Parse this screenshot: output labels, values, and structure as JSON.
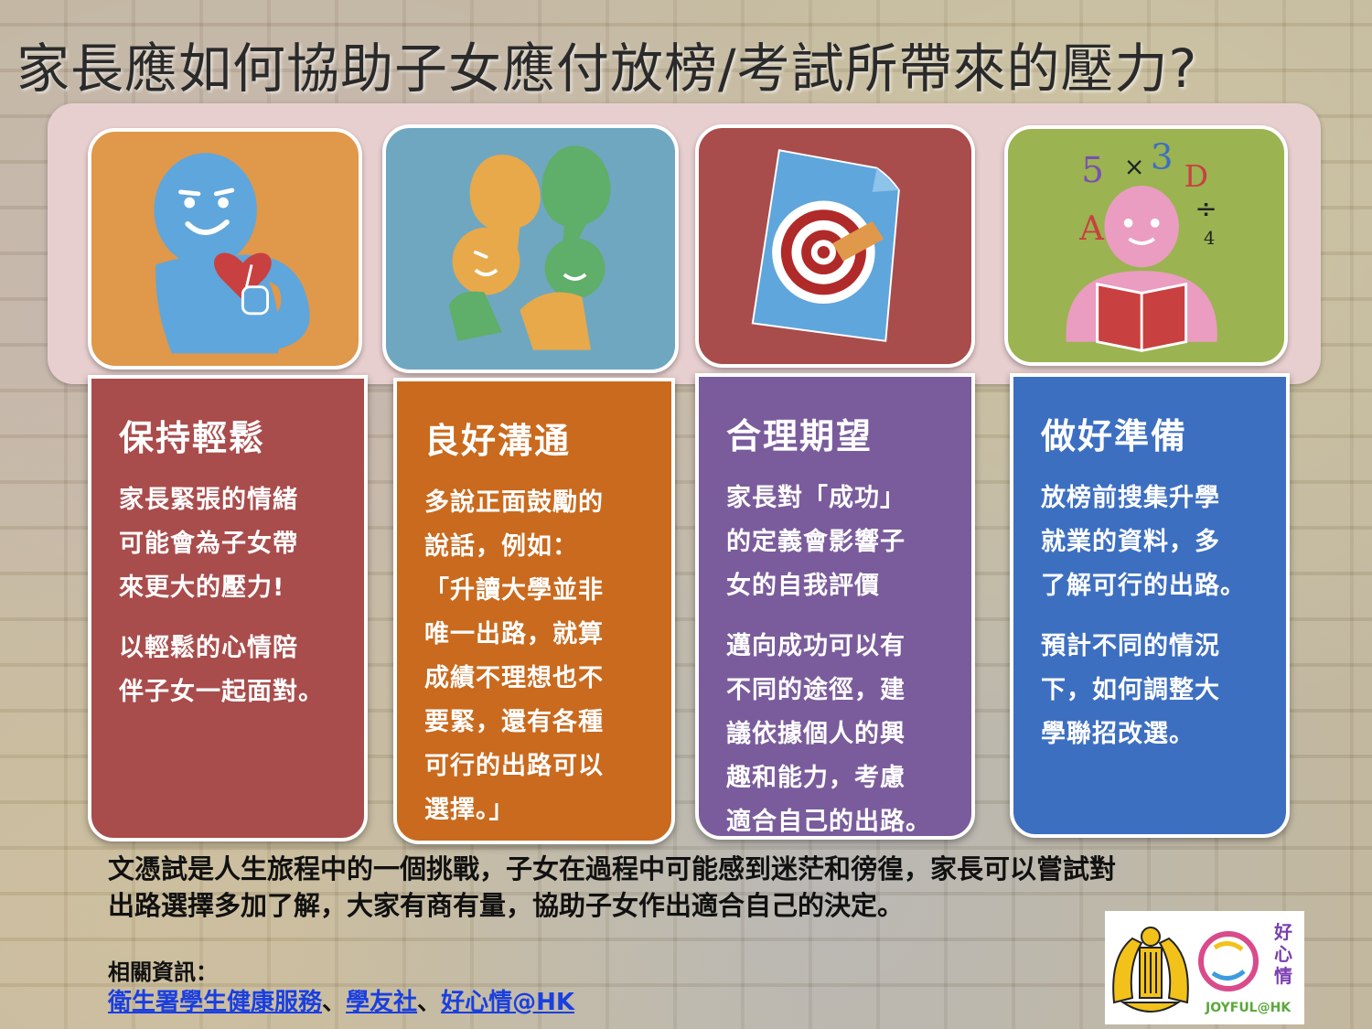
{
  "title": "家長應如何協助子女應付放榜/考試所帶來的壓力?",
  "cards": [
    {
      "title": "保持輕鬆",
      "paragraphs": [
        [
          "家長緊張的情緒",
          "可能會為子女帶",
          "來更大的壓力!"
        ],
        [
          "以輕鬆的心情陪",
          "伴子女一起面對。"
        ]
      ],
      "color": "#a94c4c",
      "icon": "smiling-person-heart-thumbs-up-icon"
    },
    {
      "title": "良好溝通",
      "paragraphs": [
        [
          "多說正面鼓勵的",
          "說話，例如：",
          "「升讀大學並非",
          "唯一出路，就算",
          "成績不理想也不",
          "要緊，還有各種",
          "可行的出路可以",
          "選擇。」"
        ]
      ],
      "color": "#c96a1e",
      "icon": "conversation-people-speech-bubbles-icon"
    },
    {
      "title": "合理期望",
      "paragraphs": [
        [
          "家長對「成功」",
          "的定義會影響子",
          "女的自我評價"
        ],
        [
          "邁向成功可以有",
          "不同的途徑，建",
          "議依據個人的興",
          "趣和能力，考慮",
          "適合自己的出路。"
        ]
      ],
      "color": "#7a5c9c",
      "icon": "target-document-icon"
    },
    {
      "title": "做好準備",
      "paragraphs": [
        [
          "放榜前搜集升學",
          "就業的資料，多",
          "了解可行的出路。"
        ],
        [
          "預計不同的情況",
          "下，如何調整大",
          "學聯招改選。"
        ]
      ],
      "color": "#3d6fc1",
      "icon": "person-reading-book-icon"
    }
  ],
  "icon_tiles": [
    {
      "color": "#e0984a"
    },
    {
      "color": "#6fa7c0"
    },
    {
      "color": "#a94c4c"
    },
    {
      "color": "#9bb351"
    }
  ],
  "icon_letters": {
    "five": "5",
    "times": "×",
    "three": "3",
    "d": "D",
    "a": "A",
    "divide": "÷",
    "four": "4"
  },
  "summary": [
    "文憑試是人生旅程中的一個挑戰，子女在過程中可能感到迷茫和徬徨，家長可以嘗試對",
    "出路選擇多加了解，大家有商有量，協助子女作出適合自己的決定。"
  ],
  "resources_label": "相關資訊：",
  "links": [
    {
      "label": "衛生署學生健康服務"
    },
    {
      "label": "學友社"
    },
    {
      "label": "好心情@HK"
    }
  ],
  "separator": "、",
  "logos": {
    "joyful_top": "好心情",
    "joyful_bottom": "JOYFUL@HK"
  }
}
